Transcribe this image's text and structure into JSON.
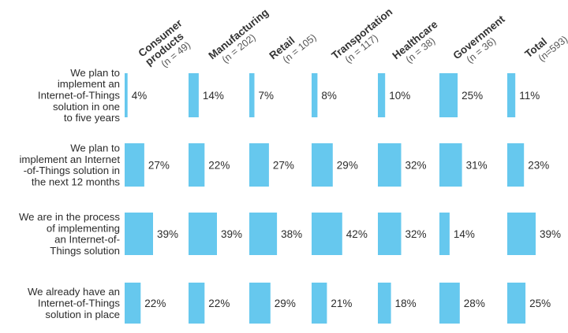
{
  "chart_data": {
    "type": "bar",
    "orientation": "horizontal-small-multiples",
    "bar_color": "#66c8ee",
    "value_suffix": "%",
    "columns": [
      {
        "name": "Consumer products",
        "name_lines": [
          "Consumer",
          "products"
        ],
        "n": "(n = 49)"
      },
      {
        "name": "Manufacturing",
        "name_lines": [
          "Manufacturing"
        ],
        "n": "(n = 202)"
      },
      {
        "name": "Retail",
        "name_lines": [
          "Retail"
        ],
        "n": "(n = 105)"
      },
      {
        "name": "Transportation",
        "name_lines": [
          "Transportation"
        ],
        "n": "(n = 117)"
      },
      {
        "name": "Healthcare",
        "name_lines": [
          "Healthcare"
        ],
        "n": "(n = 38)"
      },
      {
        "name": "Government",
        "name_lines": [
          "Government"
        ],
        "n": "(n = 36)"
      },
      {
        "name": "Total",
        "name_lines": [
          "Total"
        ],
        "n": "(n=593)"
      }
    ],
    "categories": [
      {
        "label_lines": [
          "We plan to",
          "implement an",
          "Internet-of-Things",
          "solution in one",
          "to five years"
        ]
      },
      {
        "label_lines": [
          "We plan to",
          "implement an Internet",
          "-of-Things solution in",
          "the next 12 months"
        ]
      },
      {
        "label_lines": [
          "We are in the process",
          "of implementing",
          "an Internet-of-",
          "Things solution"
        ]
      },
      {
        "label_lines": [
          "We already have an",
          "Internet-of-Things",
          "solution in place"
        ]
      }
    ],
    "values": [
      [
        4,
        14,
        7,
        8,
        10,
        25,
        11
      ],
      [
        27,
        22,
        27,
        29,
        32,
        31,
        23
      ],
      [
        39,
        39,
        38,
        42,
        32,
        14,
        39
      ],
      [
        22,
        22,
        29,
        21,
        18,
        28,
        25
      ]
    ]
  }
}
